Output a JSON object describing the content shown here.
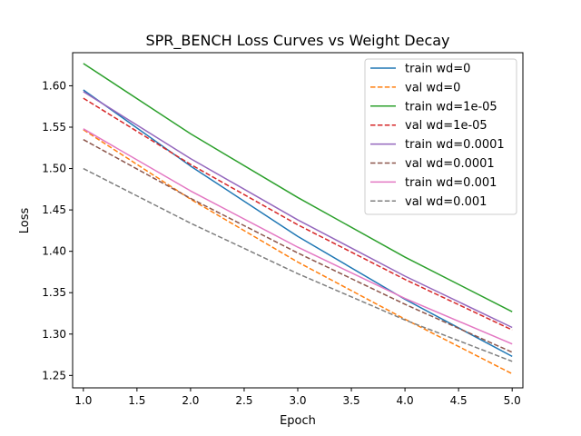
{
  "chart_data": {
    "type": "line",
    "title": "SPR_BENCH Loss Curves vs Weight Decay",
    "xlabel": "Epoch",
    "ylabel": "Loss",
    "xlim": [
      0.9,
      5.1
    ],
    "ylim": [
      1.235,
      1.64
    ],
    "x_ticks": [
      1.0,
      1.5,
      2.0,
      2.5,
      3.0,
      3.5,
      4.0,
      4.5,
      5.0
    ],
    "x_tick_labels": [
      "1.0",
      "1.5",
      "2.0",
      "2.5",
      "3.0",
      "3.5",
      "4.0",
      "4.5",
      "5.0"
    ],
    "y_ticks": [
      1.25,
      1.3,
      1.35,
      1.4,
      1.45,
      1.5,
      1.55,
      1.6
    ],
    "y_tick_labels": [
      "1.25",
      "1.30",
      "1.35",
      "1.40",
      "1.45",
      "1.50",
      "1.55",
      "1.60"
    ],
    "grid": false,
    "legend_position": "top-right",
    "x": [
      1,
      2,
      3,
      4,
      5
    ],
    "series": [
      {
        "name": "train wd=0",
        "color": "#1f77b4",
        "dash": "solid",
        "values": [
          1.595,
          1.503,
          1.418,
          1.342,
          1.273
        ]
      },
      {
        "name": "val wd=0",
        "color": "#ff7f0e",
        "dash": "dashed",
        "values": [
          1.547,
          1.463,
          1.387,
          1.318,
          1.252
        ]
      },
      {
        "name": "train wd=1e-05",
        "color": "#2ca02c",
        "dash": "solid",
        "values": [
          1.627,
          1.542,
          1.465,
          1.393,
          1.327
        ]
      },
      {
        "name": "val wd=1e-05",
        "color": "#d62728",
        "dash": "dashed",
        "values": [
          1.585,
          1.505,
          1.432,
          1.366,
          1.305
        ]
      },
      {
        "name": "train wd=0.0001",
        "color": "#9467bd",
        "dash": "solid",
        "values": [
          1.593,
          1.512,
          1.438,
          1.37,
          1.308
        ]
      },
      {
        "name": "val wd=0.0001",
        "color": "#8c564b",
        "dash": "dashed",
        "values": [
          1.535,
          1.464,
          1.398,
          1.336,
          1.278
        ]
      },
      {
        "name": "train wd=0.001",
        "color": "#e377c2",
        "dash": "solid",
        "values": [
          1.548,
          1.473,
          1.405,
          1.343,
          1.288
        ]
      },
      {
        "name": "val wd=0.001",
        "color": "#7f7f7f",
        "dash": "dashed",
        "values": [
          1.5,
          1.434,
          1.373,
          1.317,
          1.267
        ]
      }
    ]
  }
}
